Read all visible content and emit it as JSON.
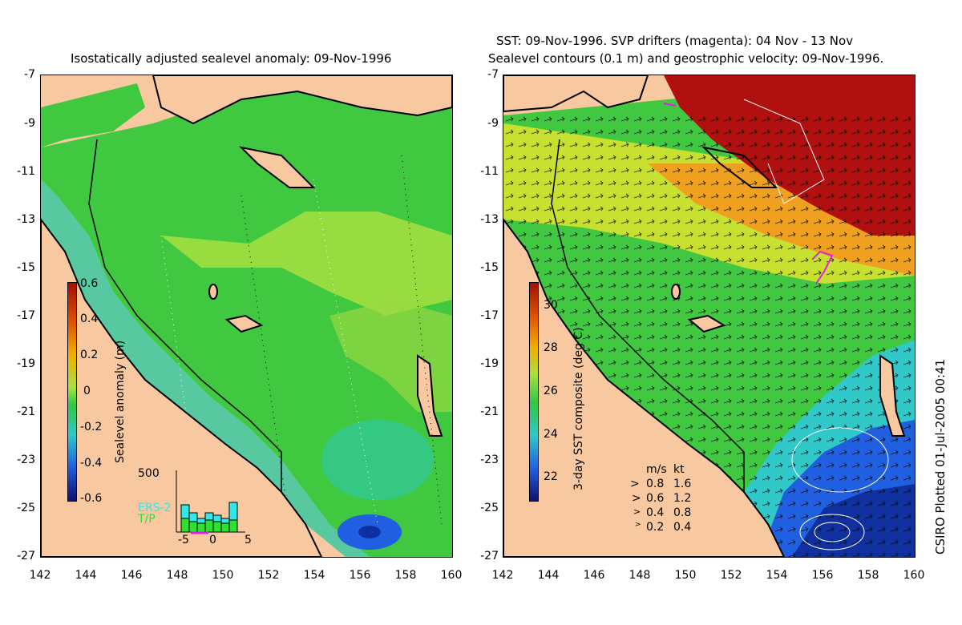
{
  "left_panel": {
    "title": "Isostatically adjusted sealevel anomaly: 09-Nov-1996",
    "colorbar": {
      "label": "Sealevel anomaly (m)",
      "ticks": [
        "0.6",
        "0.4",
        "0.2",
        "0",
        "-0.2",
        "-0.4",
        "-0.6"
      ]
    },
    "histogram": {
      "ymax_label": "500",
      "xticks": [
        "-5",
        "0",
        "5"
      ],
      "legend_ers": "ERS-2",
      "legend_tp": "T/P",
      "ers_color": "#30e8e8",
      "tp_color": "#30e030"
    }
  },
  "right_panel": {
    "title_line1": "SST: 09-Nov-1996. SVP drifters (magenta): 04 Nov - 13 Nov",
    "title_line2": "Sealevel contours (0.1 m) and geostrophic velocity: 09-Nov-1996.",
    "colorbar": {
      "label": "3-day SST composite (deg C)",
      "ticks": [
        "30",
        "28",
        "26",
        "24",
        "22"
      ]
    },
    "velocity_key": {
      "header_ms": "m/s",
      "header_kt": "kt",
      "rows": [
        {
          "ms": "0.8",
          "kt": "1.6"
        },
        {
          "ms": "0.6",
          "kt": "1.2"
        },
        {
          "ms": "0.4",
          "kt": "0.8"
        },
        {
          "ms": "0.2",
          "kt": "0.4"
        }
      ]
    }
  },
  "axes": {
    "yticks": [
      "-7",
      "-9",
      "-11",
      "-13",
      "-15",
      "-17",
      "-19",
      "-21",
      "-23",
      "-25",
      "-27"
    ],
    "xticks": [
      "142",
      "144",
      "146",
      "148",
      "150",
      "152",
      "154",
      "156",
      "158",
      "160"
    ]
  },
  "credit": "CSIRO Plotted 01-Jul-2005 00:41",
  "colors": {
    "land": "#f8c8a0",
    "ocean_green": "#40c840",
    "ocean_yellowgreen": "#a8e040",
    "ocean_cyan": "#30c8a0",
    "ocean_blue": "#2060e0",
    "sst_red": "#b01010",
    "sst_orange": "#f0a020",
    "drifter_magenta": "#e020e0"
  }
}
